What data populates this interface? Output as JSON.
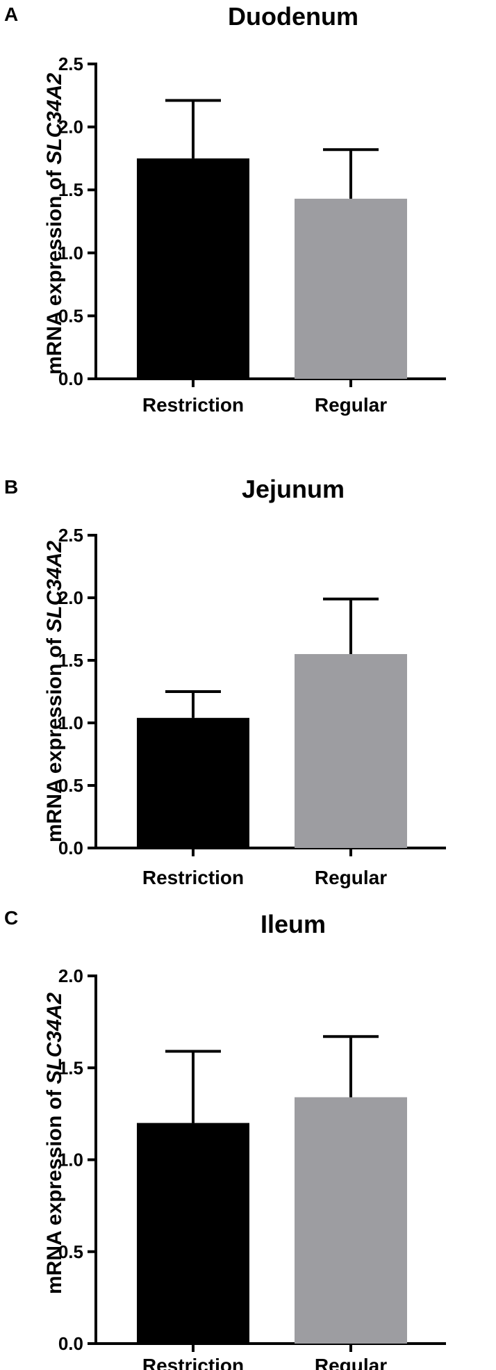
{
  "chart_data": [
    {
      "type": "bar",
      "panel": "A",
      "title": "Duodenum",
      "ylabel_prefix": "mRNA expression of ",
      "ylabel_gene": "SLC34A2",
      "categories": [
        "Restriction",
        "Regular"
      ],
      "values": [
        1.75,
        1.43
      ],
      "errors": [
        0.46,
        0.39
      ],
      "colors": [
        "#000000",
        "#9d9da1"
      ],
      "ylim": [
        0,
        2.5
      ],
      "yticks": [
        0.0,
        0.5,
        1.0,
        1.5,
        2.0,
        2.5
      ],
      "ytick_labels": [
        "0.0",
        "0.5",
        "1.0",
        "1.5",
        "2.0",
        "2.5"
      ],
      "grid": false
    },
    {
      "type": "bar",
      "panel": "B",
      "title": "Jejunum",
      "ylabel_prefix": "mRNA expression of ",
      "ylabel_gene": "SLC34A2",
      "categories": [
        "Restriction",
        "Regular"
      ],
      "values": [
        1.04,
        1.55
      ],
      "errors": [
        0.21,
        0.44
      ],
      "colors": [
        "#000000",
        "#9d9da1"
      ],
      "ylim": [
        0,
        2.5
      ],
      "yticks": [
        0.0,
        0.5,
        1.0,
        1.5,
        2.0,
        2.5
      ],
      "ytick_labels": [
        "0.0",
        "0.5",
        "1.0",
        "1.5",
        "2.0",
        "2.5"
      ],
      "grid": false
    },
    {
      "type": "bar",
      "panel": "C",
      "title": "Ileum",
      "ylabel_prefix": "mRNA expression of ",
      "ylabel_gene": "SLC34A2",
      "categories": [
        "Restriction",
        "Regular"
      ],
      "values": [
        1.2,
        1.34
      ],
      "errors": [
        0.39,
        0.33
      ],
      "colors": [
        "#000000",
        "#9d9da1"
      ],
      "ylim": [
        0,
        2.0
      ],
      "yticks": [
        0.0,
        0.5,
        1.0,
        1.5,
        2.0
      ],
      "ytick_labels": [
        "0.0",
        "0.5",
        "1.0",
        "1.5",
        "2.0"
      ],
      "grid": false
    }
  ]
}
